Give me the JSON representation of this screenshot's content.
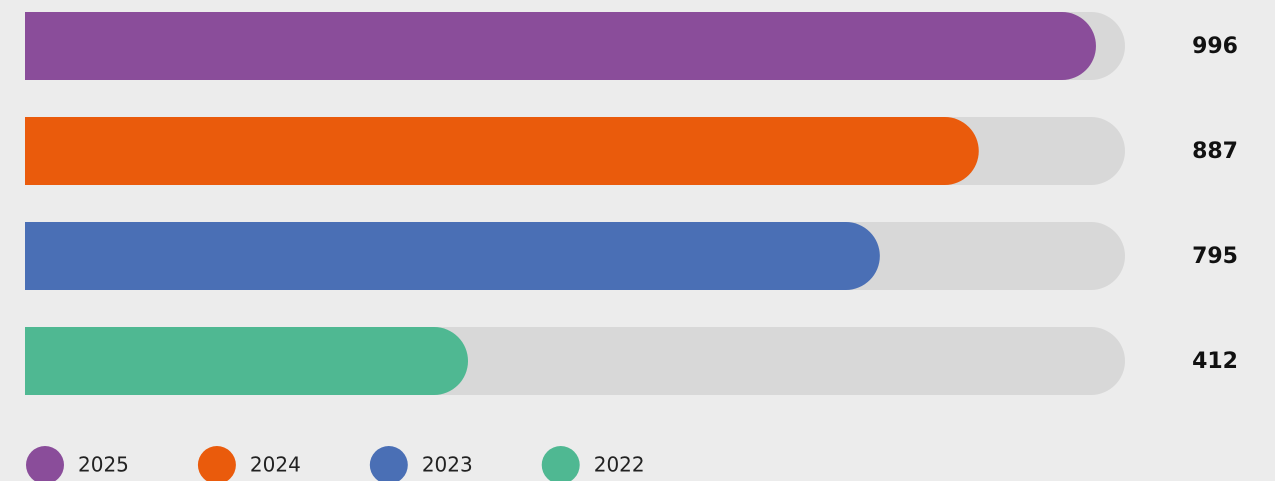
{
  "chart_data": {
    "type": "bar",
    "orientation": "horizontal",
    "categories": [
      "2025",
      "2024",
      "2023",
      "2022"
    ],
    "values": [
      996,
      887,
      795,
      412
    ],
    "colors": [
      "#8a4d9a",
      "#ea5b0c",
      "#4a6fb5",
      "#4fb892"
    ],
    "track_color": "#d8d8d8",
    "xlim": [
      0,
      1023
    ],
    "legend": "bottom-left"
  }
}
